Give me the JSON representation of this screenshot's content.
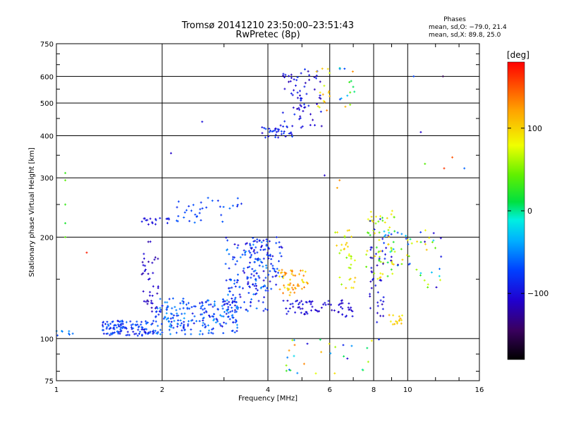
{
  "header": {
    "title_line1": "Tromsø 20141210 23:50:00–23:51:43",
    "title_line2": "RwPretec (8p)",
    "stats_title": "Phases",
    "stats_o": "mean, sd,O: −79.0, 21.4",
    "stats_x": "mean, sd,X:  89.8, 25.0"
  },
  "colorbar": {
    "unit_label": "[deg]",
    "min": -180,
    "max": 180,
    "ticks": [
      {
        "value": 100,
        "label": "100"
      },
      {
        "value": 0,
        "label": "0"
      },
      {
        "value": -100,
        "label": "−100"
      }
    ]
  },
  "chart_data": {
    "type": "scatter",
    "title": "Tromsø 20141210 23:50:00–23:51:43 RwPretec (8p)",
    "xlabel": "Frequency [MHz]",
    "ylabel": "Stationary phase Virtual Height [km]",
    "xscale": "log",
    "yscale": "log",
    "xlim": [
      1,
      16
    ],
    "ylim": [
      75,
      750
    ],
    "xticks": [
      {
        "value": 1,
        "label": "1"
      },
      {
        "value": 2,
        "label": "2"
      },
      {
        "value": 4,
        "label": "4"
      },
      {
        "value": 6,
        "label": "6"
      },
      {
        "value": 8,
        "label": "8"
      },
      {
        "value": 10,
        "label": "10"
      },
      {
        "value": 16,
        "label": "16"
      }
    ],
    "yticks": [
      {
        "value": 75,
        "label": "75"
      },
      {
        "value": 100,
        "label": "100"
      },
      {
        "value": 200,
        "label": "200"
      },
      {
        "value": 300,
        "label": "300"
      },
      {
        "value": 400,
        "label": "400"
      },
      {
        "value": 500,
        "label": "500"
      },
      {
        "value": 600,
        "label": "600"
      },
      {
        "value": 750,
        "label": "750"
      }
    ],
    "grid": true,
    "color_encoding": "phase [deg], colormap from black (-180) through blue, cyan, green, yellow to red (+180)",
    "clusters": [
      {
        "x_range": [
          1.0,
          1.12
        ],
        "y_range": [
          101,
          106
        ],
        "phase_range": [
          -80,
          -40
        ],
        "count": 8
      },
      {
        "x_range": [
          1.35,
          1.9
        ],
        "y_range": [
          102,
          113
        ],
        "phase_range": [
          -105,
          -55
        ],
        "count": 120
      },
      {
        "x_range": [
          1.9,
          3.3
        ],
        "y_range": [
          103,
          132
        ],
        "phase_range": [
          -100,
          -40
        ],
        "count": 220
      },
      {
        "x_range": [
          3.0,
          4.0
        ],
        "y_range": [
          120,
          200
        ],
        "phase_range": [
          -110,
          -45
        ],
        "count": 140
      },
      {
        "x_range": [
          3.5,
          4.4
        ],
        "y_range": [
          140,
          200
        ],
        "phase_range": [
          -110,
          -60
        ],
        "count": 70
      },
      {
        "x_range": [
          1.75,
          1.95
        ],
        "y_range": [
          120,
          195
        ],
        "phase_range": [
          -125,
          -100
        ],
        "count": 40
      },
      {
        "x_range": [
          1.75,
          2.1
        ],
        "y_range": [
          218,
          228
        ],
        "phase_range": [
          -110,
          -85
        ],
        "count": 18
      },
      {
        "x_range": [
          2.2,
          3.4
        ],
        "y_range": [
          220,
          265
        ],
        "phase_range": [
          -90,
          -55
        ],
        "count": 35
      },
      {
        "x_range": [
          3.8,
          4.7
        ],
        "y_range": [
          395,
          430
        ],
        "phase_range": [
          -110,
          -70
        ],
        "count": 35
      },
      {
        "x_range": [
          4.4,
          5.7
        ],
        "y_range": [
          420,
          630
        ],
        "phase_range": [
          -120,
          -80
        ],
        "count": 70
      },
      {
        "x_range": [
          5.5,
          6.0
        ],
        "y_range": [
          470,
          640
        ],
        "phase_range": [
          60,
          140
        ],
        "count": 15
      },
      {
        "x_range": [
          6.4,
          7.1
        ],
        "y_range": [
          470,
          640
        ],
        "phase_range": [
          -110,
          130
        ],
        "count": 14
      },
      {
        "x_range": [
          4.3,
          5.2
        ],
        "y_range": [
          133,
          160
        ],
        "phase_range": [
          90,
          140
        ],
        "count": 55
      },
      {
        "x_range": [
          4.4,
          6.0
        ],
        "y_range": [
          118,
          130
        ],
        "phase_range": [
          -115,
          -90
        ],
        "count": 45
      },
      {
        "x_range": [
          6.0,
          7.0
        ],
        "y_range": [
          115,
          130
        ],
        "phase_range": [
          -120,
          -95
        ],
        "count": 25
      },
      {
        "x_range": [
          6.2,
          7.2
        ],
        "y_range": [
          140,
          210
        ],
        "phase_range": [
          40,
          110
        ],
        "count": 35
      },
      {
        "x_range": [
          7.6,
          9.2
        ],
        "y_range": [
          150,
          240
        ],
        "phase_range": [
          20,
          110
        ],
        "count": 55
      },
      {
        "x_range": [
          8.5,
          10.3
        ],
        "y_range": [
          160,
          210
        ],
        "phase_range": [
          -120,
          120
        ],
        "count": 40
      },
      {
        "x_range": [
          8.8,
          9.8
        ],
        "y_range": [
          110,
          118
        ],
        "phase_range": [
          80,
          120
        ],
        "count": 15
      },
      {
        "x_range": [
          10.5,
          12.5
        ],
        "y_range": [
          140,
          210
        ],
        "phase_range": [
          -120,
          120
        ],
        "count": 25
      },
      {
        "x_range": [
          4.5,
          8.5
        ],
        "y_range": [
          78,
          100
        ],
        "phase_range": [
          -110,
          140
        ],
        "count": 30
      },
      {
        "x_range": [
          7.8,
          8.6
        ],
        "y_range": [
          110,
          230
        ],
        "phase_range": [
          -120,
          -90
        ],
        "count": 40
      }
    ],
    "isolated_points": [
      {
        "x": 1.06,
        "y": 310,
        "phase": 30
      },
      {
        "x": 1.06,
        "y": 295,
        "phase": 40
      },
      {
        "x": 1.06,
        "y": 250,
        "phase": 30
      },
      {
        "x": 1.06,
        "y": 220,
        "phase": 20
      },
      {
        "x": 1.06,
        "y": 200,
        "phase": 40
      },
      {
        "x": 1.22,
        "y": 180,
        "phase": 170
      },
      {
        "x": 2.6,
        "y": 440,
        "phase": -100
      },
      {
        "x": 2.12,
        "y": 355,
        "phase": -110
      },
      {
        "x": 10.9,
        "y": 410,
        "phase": -110
      },
      {
        "x": 11.2,
        "y": 330,
        "phase": 40
      },
      {
        "x": 12.6,
        "y": 600,
        "phase": -150
      },
      {
        "x": 13.4,
        "y": 345,
        "phase": 150
      },
      {
        "x": 14.5,
        "y": 320,
        "phase": -60
      },
      {
        "x": 12.7,
        "y": 320,
        "phase": 160
      },
      {
        "x": 6.4,
        "y": 295,
        "phase": 130
      },
      {
        "x": 6.3,
        "y": 280,
        "phase": 120
      },
      {
        "x": 5.8,
        "y": 305,
        "phase": -110
      },
      {
        "x": 10.4,
        "y": 600,
        "phase": -70
      }
    ]
  }
}
